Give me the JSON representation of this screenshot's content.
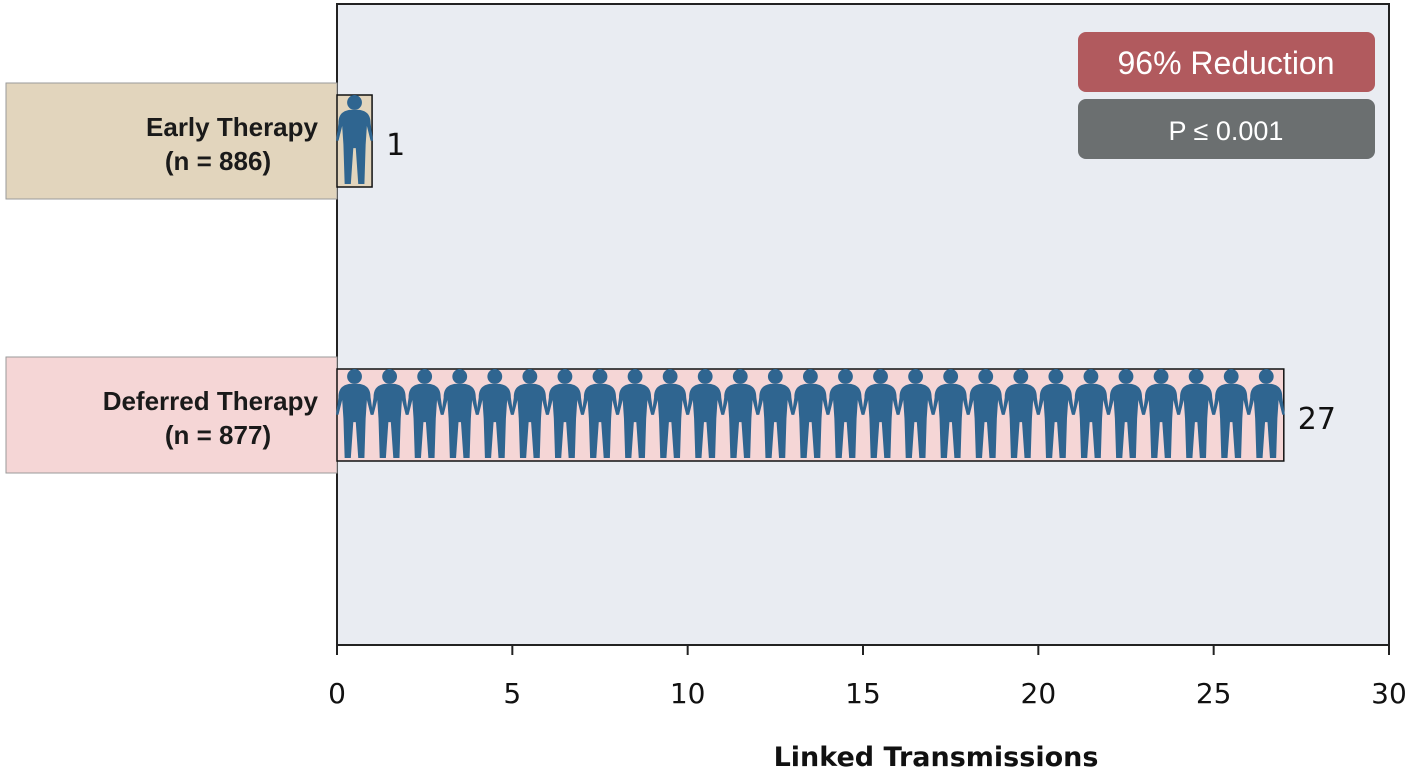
{
  "chart_data": {
    "type": "bar",
    "orientation": "horizontal",
    "categories": [
      {
        "label": "Early Therapy",
        "n_label": "(n = 886)",
        "color": "#e2d5bd"
      },
      {
        "label": "Deferred Therapy",
        "n_label": "(n = 877)",
        "color": "#f5d6d6"
      }
    ],
    "values": [
      1,
      27
    ],
    "value_labels": [
      "1",
      "27"
    ],
    "xlabel": "Linked Transmissions",
    "xlim": [
      0,
      30
    ],
    "xticks": [
      0,
      5,
      10,
      15,
      20,
      25,
      30
    ],
    "plot_background": "#e9ecf2",
    "icon_color": "#2f6590",
    "annotations": {
      "reduction": {
        "text": "96% Reduction",
        "color": "#b15a5e"
      },
      "pvalue": {
        "text": "P ≤ 0.001",
        "color": "#6b6f70"
      }
    },
    "marker_icon": "person-silhouette-icon",
    "grid": false,
    "legend": "none"
  }
}
